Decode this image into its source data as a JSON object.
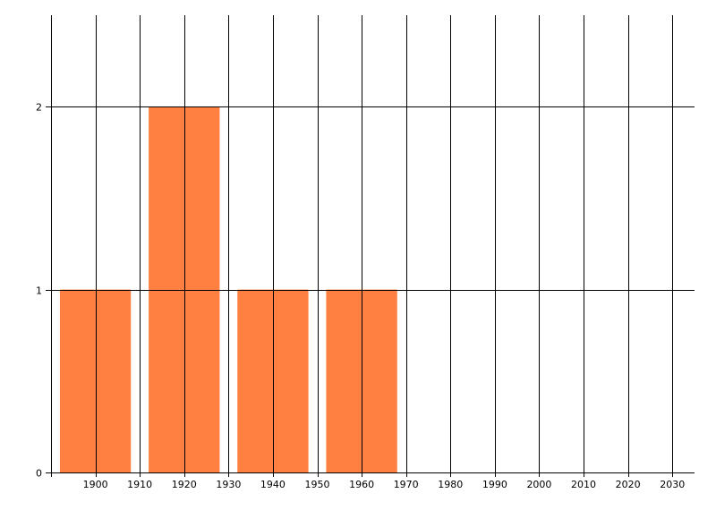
{
  "chart_data": {
    "type": "bar",
    "title": "",
    "xlabel": "",
    "ylabel": "",
    "categories": [
      1900,
      1920,
      1940,
      1960
    ],
    "values": [
      1,
      2,
      1,
      1
    ],
    "bar_width_years": 16,
    "xlim": [
      1890,
      2035
    ],
    "ylim": [
      0,
      2.5
    ],
    "x_ticks": [
      "1900",
      "1910",
      "1920",
      "1930",
      "1940",
      "1950",
      "1960",
      "1970",
      "1980",
      "1990",
      "2000",
      "2010",
      "2020",
      "2030"
    ],
    "y_ticks": [
      "0",
      "1",
      "2"
    ],
    "grid": true,
    "legend": "none",
    "bar_color": "#FF8040",
    "grid_color": "#000000"
  }
}
